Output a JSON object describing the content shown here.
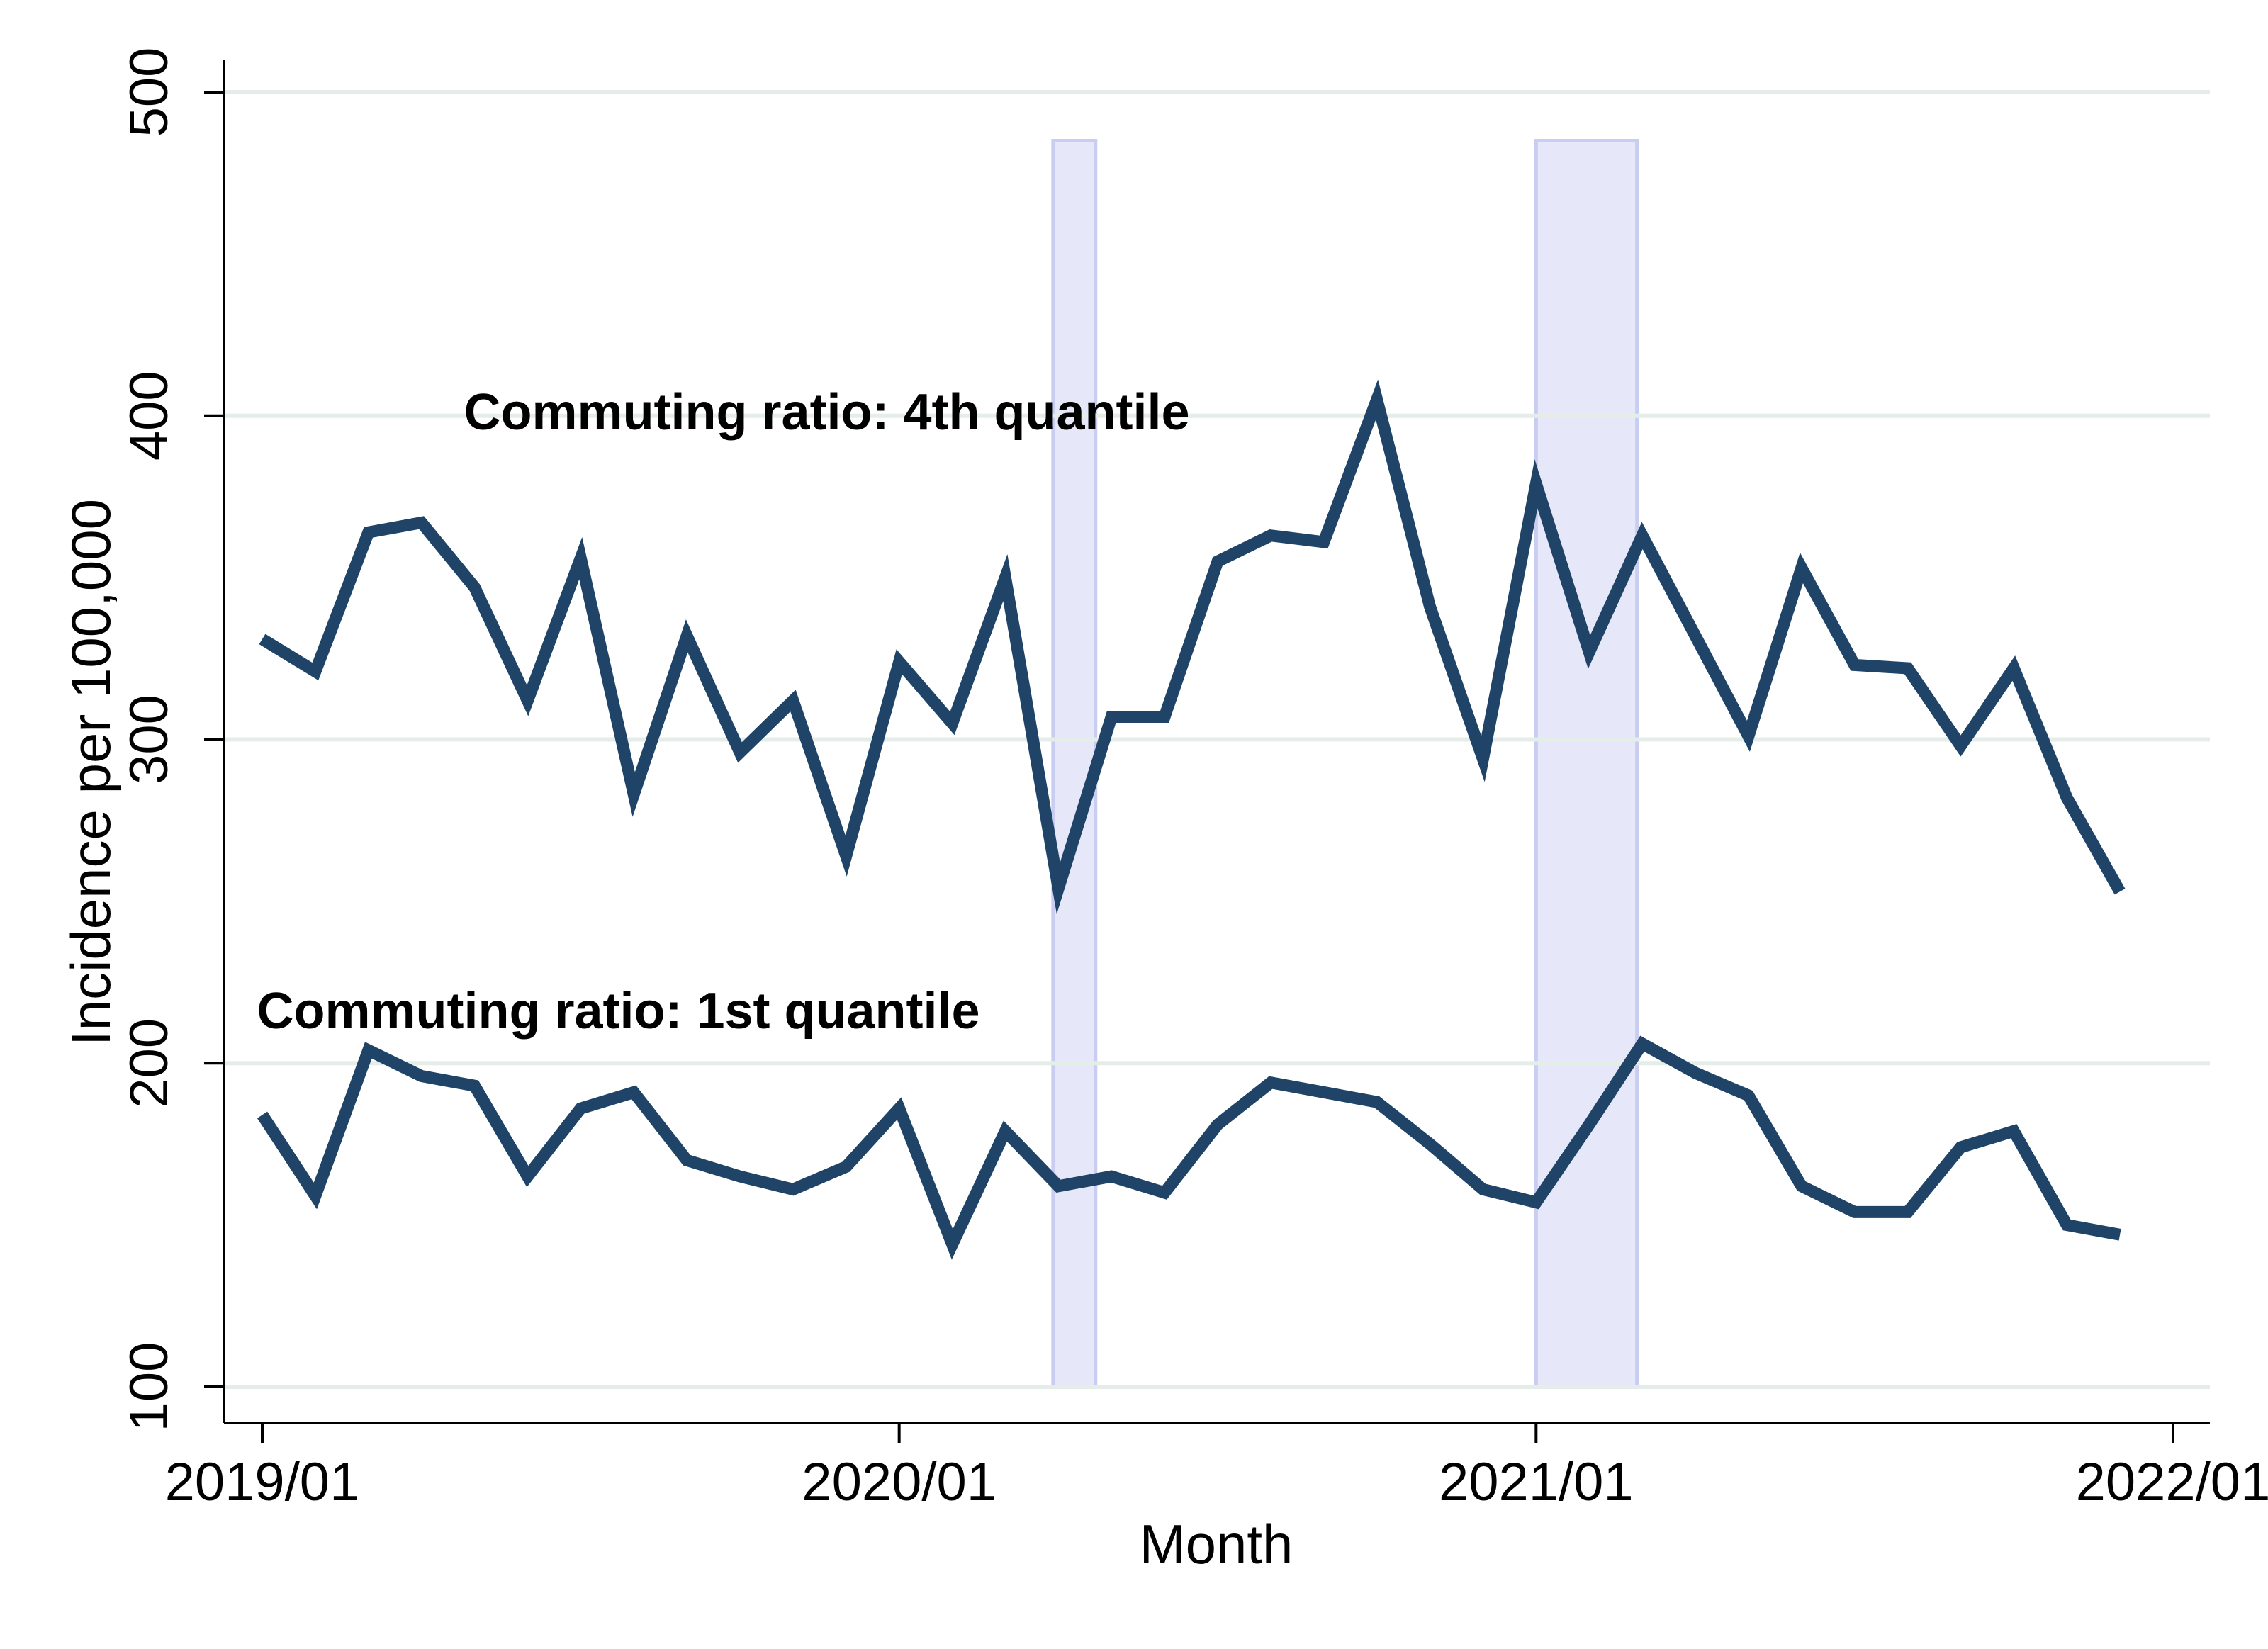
{
  "chart_data": {
    "type": "line",
    "title": "",
    "xlabel": "Month",
    "ylabel": "Incidence per 100,000",
    "ylim": [
      100,
      500
    ],
    "yticks": [
      100,
      200,
      300,
      400,
      500
    ],
    "xtick_labels": [
      "2019/01",
      "2020/01",
      "2021/01",
      "2022/01"
    ],
    "xlim_months": [
      0,
      36
    ],
    "grid": true,
    "series": [
      {
        "name": "Commuting ratio: 4th quantile",
        "color": "#1f4468",
        "values": [
          331,
          321,
          364,
          367,
          347,
          312,
          356,
          283,
          332,
          296,
          312,
          264,
          324,
          305,
          350,
          254,
          307,
          307,
          355,
          363,
          361,
          405,
          341,
          294,
          379,
          327,
          363,
          332,
          301,
          353,
          323,
          322,
          298,
          322,
          282,
          253
        ]
      },
      {
        "name": "Commuting ratio: 1st quantile",
        "color": "#1f4468",
        "values": [
          184,
          159,
          204,
          196,
          193,
          165,
          186,
          191,
          170,
          165,
          161,
          168,
          186,
          144,
          179,
          162,
          165,
          160,
          181,
          194,
          191,
          188,
          175,
          161,
          157,
          181,
          206,
          197,
          190,
          162,
          154,
          154,
          174,
          179,
          150,
          147
        ]
      }
    ],
    "shaded_periods": [
      {
        "start_month": 14.9,
        "end_month": 15.7,
        "ymin": 100,
        "ymax": 485,
        "color": "#e6e8fa"
      },
      {
        "start_month": 24.0,
        "end_month": 25.9,
        "ymin": 100,
        "ymax": 485,
        "color": "#e6e8fa"
      }
    ],
    "annotations": [
      {
        "text": "Commuting ratio: 4th quantile",
        "month": 3.8,
        "y": 400
      },
      {
        "text": "Commuting ratio: 1st quantile",
        "month": -0.1,
        "y": 215
      }
    ]
  }
}
